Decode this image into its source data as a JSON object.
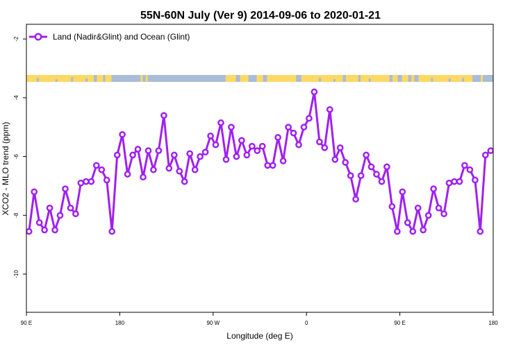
{
  "chart_data": {
    "type": "line",
    "title": "55N-60N July (Ver 9)   2014-09-06 to 2020-01-21",
    "xlabel": "Longitude (deg E)",
    "ylabel": "XCO2 - MLO trend (ppm)",
    "xlim": [
      90,
      540
    ],
    "ylim": [
      -11.3,
      -1.5
    ],
    "x_ticks": [
      {
        "value": 90,
        "label": "90 E"
      },
      {
        "value": 180,
        "label": "180"
      },
      {
        "value": 270,
        "label": "90 W"
      },
      {
        "value": 360,
        "label": "0"
      },
      {
        "value": 450,
        "label": "90 E"
      },
      {
        "value": 540,
        "label": "180"
      }
    ],
    "y_ticks": [
      -10,
      -8,
      -6,
      -4,
      -2
    ],
    "legend": {
      "position": "top-left",
      "label": "Land (Nadir&Glint) and Ocean (Glint)"
    },
    "series_color": "#A020F0",
    "landmask_colors": {
      "land": "#FFD966",
      "ocean": "#A9BCD8"
    },
    "series": [
      {
        "name": "Land (Nadir&Glint) and Ocean (Glint)",
        "x": [
          92.5,
          97.5,
          102.5,
          107.5,
          112.5,
          117.5,
          122.5,
          127.5,
          132.5,
          137.5,
          142.5,
          147.5,
          152.5,
          157.5,
          162.5,
          167.5,
          172.5,
          177.5,
          182.5,
          187.5,
          192.5,
          197.5,
          202.5,
          207.5,
          212.5,
          217.5,
          222.5,
          227.5,
          232.5,
          237.5,
          242.5,
          247.5,
          252.5,
          257.5,
          262.5,
          267.5,
          272.5,
          277.5,
          282.5,
          287.5,
          292.5,
          297.5,
          302.5,
          307.5,
          312.5,
          317.5,
          322.5,
          327.5,
          332.5,
          337.5,
          342.5,
          347.5,
          352.5,
          357.5,
          362.5,
          367.5,
          372.5,
          377.5,
          382.5,
          387.5,
          392.5,
          397.5,
          402.5,
          407.5,
          412.5,
          417.5,
          422.5,
          427.5,
          432.5,
          437.5,
          442.5,
          447.5,
          452.5,
          457.5,
          462.5,
          467.5,
          472.5,
          477.5,
          482.5,
          487.5,
          492.5,
          497.5,
          502.5,
          507.5,
          512.5,
          517.5,
          522.5,
          527.5,
          532.5,
          537.5
        ],
        "values": [
          -8.55,
          -7.2,
          -8.25,
          -8.5,
          -7.75,
          -8.5,
          -8.0,
          -7.1,
          -7.75,
          -7.95,
          -6.9,
          -6.85,
          -6.85,
          -6.3,
          -6.45,
          -6.8,
          -8.55,
          -5.95,
          -5.25,
          -6.6,
          -5.95,
          -5.75,
          -6.7,
          -5.8,
          -6.45,
          -5.8,
          -4.6,
          -6.4,
          -5.95,
          -6.5,
          -6.85,
          -5.9,
          -6.45,
          -6.0,
          -5.85,
          -5.3,
          -5.6,
          -4.85,
          -6.1,
          -5.0,
          -6.0,
          -5.45,
          -5.95,
          -5.65,
          -5.8,
          -5.65,
          -6.3,
          -6.3,
          -5.35,
          -6.15,
          -5.0,
          -5.2,
          -5.6,
          -5.0,
          -4.7,
          -3.8,
          -5.5,
          -5.7,
          -4.4,
          -6.1,
          -5.7,
          -6.2,
          -6.65,
          -7.45,
          -6.65,
          -5.95,
          -6.35,
          -6.6,
          -6.85,
          -6.35,
          -7.7,
          -8.55,
          -7.2,
          -8.25,
          -8.55,
          -7.75,
          -8.5,
          -8.0,
          -7.1,
          -7.75,
          -7.95,
          -6.9,
          -6.85,
          -6.85,
          -6.3,
          -6.45,
          -6.8,
          -8.55,
          -5.95,
          -5.8
        ]
      }
    ]
  }
}
